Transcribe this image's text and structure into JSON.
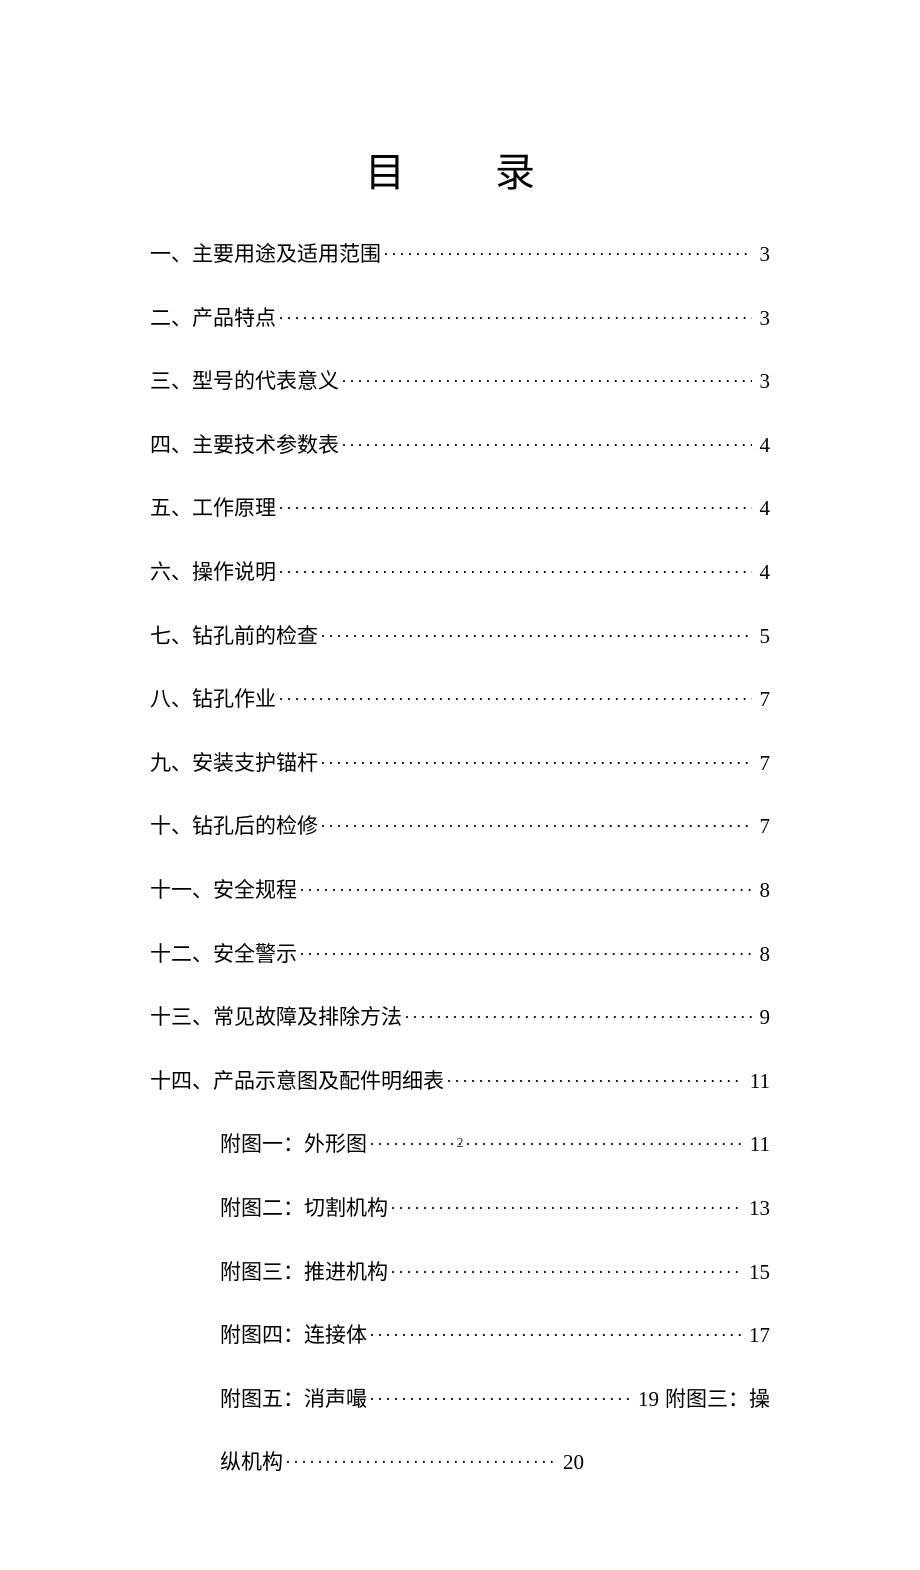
{
  "title": "目录",
  "title_display": "目录",
  "background_color": "#ffffff",
  "text_color": "#000000",
  "font_family": "SimSun",
  "title_fontsize": 40,
  "body_fontsize": 21,
  "page_number": "2",
  "entries": [
    {
      "label": "一、主要用途及适用范围",
      "page": "3",
      "indent": false
    },
    {
      "label": "二、产品特点",
      "page": "3",
      "indent": false
    },
    {
      "label": "三、型号的代表意义",
      "page": "3",
      "indent": false
    },
    {
      "label": "四、主要技术参数表",
      "page": "4",
      "indent": false
    },
    {
      "label": "五、工作原理",
      "page": "4",
      "indent": false
    },
    {
      "label": "六、操作说明",
      "page": "4",
      "indent": false
    },
    {
      "label": "七、钻孔前的检查",
      "page": "5",
      "indent": false
    },
    {
      "label": "八、钻孔作业",
      "page": "7",
      "indent": false
    },
    {
      "label": "九、安装支护锚杆",
      "page": "7",
      "indent": false
    },
    {
      "label": "十、钻孔后的检修",
      "page": "7",
      "indent": false
    },
    {
      "label": "十一、安全规程",
      "page": "8",
      "indent": false
    },
    {
      "label": "十二、安全警示",
      "page": "8",
      "indent": false
    },
    {
      "label": "十三、常见故障及排除方法",
      "page": "9",
      "indent": false
    },
    {
      "label": "十四、产品示意图及配件明细表",
      "page": "11",
      "indent": false
    },
    {
      "label": "附图一：外形图",
      "page": "11",
      "indent": true
    },
    {
      "label": "附图二：切割机构",
      "page": "13",
      "indent": true
    },
    {
      "label": "附图三：推进机构",
      "page": "15",
      "indent": true
    },
    {
      "label": "附图四：连接体",
      "page": "17",
      "indent": true
    },
    {
      "label": "附图五：消声嘬",
      "page": "19",
      "indent": true,
      "suffix": "附图三：操"
    }
  ],
  "trailing_line": {
    "label": "纵机构",
    "page": "20",
    "indent": true
  }
}
